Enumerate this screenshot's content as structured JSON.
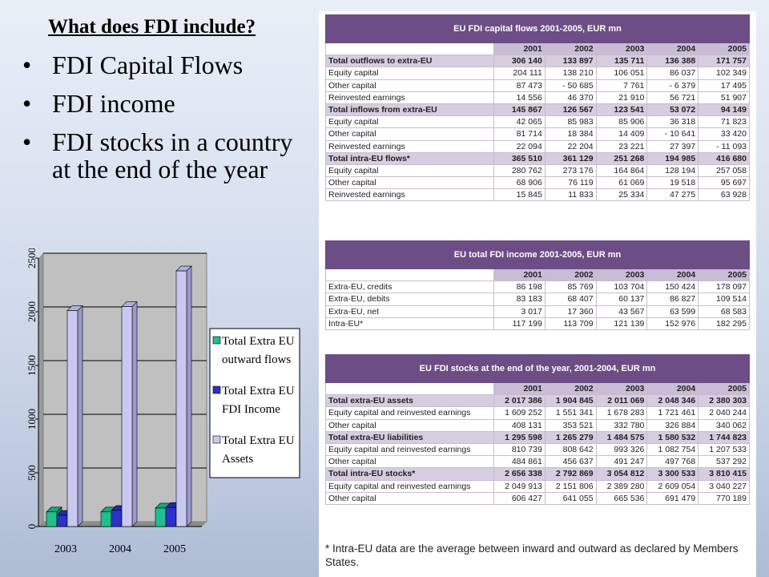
{
  "slide": {
    "title": "What does FDI include?",
    "bullets": [
      "FDI Capital Flows",
      "FDI income",
      "FDI stocks in a country at the end of the year"
    ]
  },
  "chart_data": {
    "type": "bar",
    "categories": [
      "2003",
      "2004",
      "2005"
    ],
    "series": [
      {
        "name": "Total Extra EU outward flows",
        "values": [
          136,
          136,
          172
        ]
      },
      {
        "name": "Total Extra EU FDI Income",
        "values": [
          104,
          150,
          178
        ]
      },
      {
        "name": "Total Extra EU Assets",
        "values": [
          2011,
          2048,
          2380
        ]
      }
    ],
    "ylim": [
      0,
      2500
    ],
    "yticks": [
      0,
      500,
      1000,
      1500,
      2000,
      2500
    ],
    "legend_position": "right",
    "colors": [
      "#1fbf8f",
      "#2a32c8",
      "#c8c8f0"
    ],
    "legend": {
      "series0_line1": "Total Extra EU",
      "series0_line2": "outward flows",
      "series1_line1": "Total Extra EU",
      "series1_line2": "FDI Income",
      "series2_line1": "Total Extra EU",
      "series2_line2": "Assets"
    }
  },
  "tables": {
    "years": [
      "2001",
      "2002",
      "2003",
      "2004",
      "2005"
    ],
    "t1": {
      "title": "EU FDI capital flows 2001-2005, EUR mn",
      "rows": [
        {
          "label": "Total outflows to extra-EU",
          "total": true,
          "values": [
            "306 140",
            "133 897",
            "135 711",
            "136 388",
            "171 757"
          ]
        },
        {
          "label": "Equity capital",
          "total": false,
          "values": [
            "204 111",
            "138 210",
            "106 051",
            "86 037",
            "102 349"
          ]
        },
        {
          "label": "Other capital",
          "total": false,
          "values": [
            "87 473",
            "- 50 685",
            "7 761",
            "- 6 379",
            "17 495"
          ]
        },
        {
          "label": "Reinvested earnings",
          "total": false,
          "values": [
            "14 556",
            "46 370",
            "21 910",
            "56 721",
            "51 907"
          ]
        },
        {
          "label": "Total inflows from extra-EU",
          "total": true,
          "values": [
            "145 867",
            "126 567",
            "123 541",
            "53 072",
            "94 149"
          ]
        },
        {
          "label": "Equity capital",
          "total": false,
          "values": [
            "42 065",
            "85 983",
            "85 906",
            "36 318",
            "71 823"
          ]
        },
        {
          "label": "Other capital",
          "total": false,
          "values": [
            "81 714",
            "18 384",
            "14 409",
            "- 10 641",
            "33 420"
          ]
        },
        {
          "label": "Reinvested earnings",
          "total": false,
          "values": [
            "22 094",
            "22 204",
            "23 221",
            "27 397",
            "- 11 093"
          ]
        },
        {
          "label": "Total intra-EU flows*",
          "total": true,
          "values": [
            "365 510",
            "361 129",
            "251 268",
            "194 985",
            "416 680"
          ]
        },
        {
          "label": "Equity capital",
          "total": false,
          "values": [
            "280 762",
            "273 176",
            "164 864",
            "128 194",
            "257 058"
          ]
        },
        {
          "label": "Other capital",
          "total": false,
          "values": [
            "68 906",
            "76 119",
            "61 069",
            "19 518",
            "95 697"
          ]
        },
        {
          "label": "Reinvested earnings",
          "total": false,
          "values": [
            "15 845",
            "11 833",
            "25 334",
            "47 275",
            "63 928"
          ]
        }
      ]
    },
    "t2": {
      "title": "EU total FDI income 2001-2005, EUR mn",
      "rows": [
        {
          "label": "Extra-EU, credits",
          "total": false,
          "values": [
            "86 198",
            "85 769",
            "103 704",
            "150 424",
            "178 097"
          ]
        },
        {
          "label": "Extra-EU, debits",
          "total": false,
          "values": [
            "83 183",
            "68 407",
            "60 137",
            "86 827",
            "109 514"
          ]
        },
        {
          "label": "Extra-EU, net",
          "total": false,
          "values": [
            "3 017",
            "17 360",
            "43 567",
            "63 599",
            "68 583"
          ]
        },
        {
          "label": "Intra-EU*",
          "total": false,
          "values": [
            "117 199",
            "113 709",
            "121 139",
            "152 976",
            "182 295"
          ]
        }
      ]
    },
    "t3": {
      "title": "EU FDI stocks at the end of the year, 2001-2004, EUR mn",
      "rows": [
        {
          "label": "Total extra-EU assets",
          "total": true,
          "values": [
            "2 017 386",
            "1 904 845",
            "2 011 069",
            "2 048 346",
            "2 380 303"
          ]
        },
        {
          "label": "Equity capital and reinvested earnings",
          "total": false,
          "values": [
            "1 609 252",
            "1 551 341",
            "1 678 283",
            "1 721 461",
            "2 040 244"
          ]
        },
        {
          "label": "Other capital",
          "total": false,
          "values": [
            "408 131",
            "353 521",
            "332 780",
            "326 884",
            "340 062"
          ]
        },
        {
          "label": "Total extra-EU liabilities",
          "total": true,
          "values": [
            "1 295 598",
            "1 265 279",
            "1 484 575",
            "1 580 532",
            "1 744 823"
          ]
        },
        {
          "label": "Equity capital and reinvested earnings",
          "total": false,
          "values": [
            "810 739",
            "808 642",
            "993 326",
            "1 082 754",
            "1 207 533"
          ]
        },
        {
          "label": "Other capital",
          "total": false,
          "values": [
            "484 861",
            "456 637",
            "491 247",
            "497 768",
            "537 292"
          ]
        },
        {
          "label": "Total intra-EU stocks*",
          "total": true,
          "values": [
            "2 656 338",
            "2 792 869",
            "3 054 812",
            "3 300 533",
            "3 810 415"
          ]
        },
        {
          "label": "Equity capital and reinvested earnings",
          "total": false,
          "values": [
            "2 049 913",
            "2 151 806",
            "2 389 280",
            "2 609 054",
            "3 040 227"
          ]
        },
        {
          "label": "Other capital",
          "total": false,
          "values": [
            "606 427",
            "641 055",
            "665 536",
            "691 479",
            "770 189"
          ]
        }
      ]
    },
    "footnote": "* Intra-EU data are the average between inward and outward as declared by Members States."
  }
}
